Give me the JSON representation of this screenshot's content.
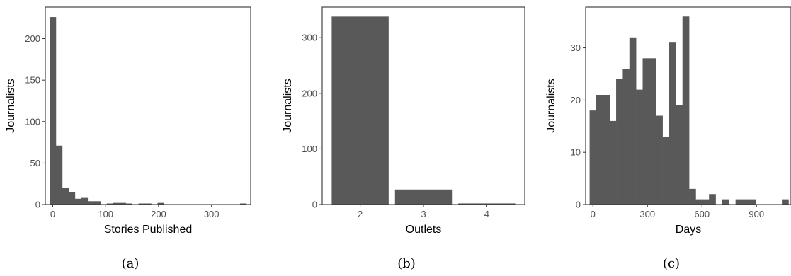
{
  "chart_data": [
    {
      "type": "bar",
      "caption": "(a)",
      "xlabel": "Stories Published",
      "ylabel": "Journalists",
      "xlim": [
        -14,
        374
      ],
      "ylim": [
        0,
        238
      ],
      "xticks": [
        0,
        100,
        200,
        300
      ],
      "yticks": [
        0,
        50,
        100,
        150,
        200
      ],
      "bin_width": 12,
      "bins": [
        {
          "x": 0,
          "y": 226
        },
        {
          "x": 12,
          "y": 71
        },
        {
          "x": 24,
          "y": 20
        },
        {
          "x": 36,
          "y": 15
        },
        {
          "x": 48,
          "y": 7
        },
        {
          "x": 60,
          "y": 8
        },
        {
          "x": 72,
          "y": 4
        },
        {
          "x": 84,
          "y": 4
        },
        {
          "x": 108,
          "y": 1
        },
        {
          "x": 120,
          "y": 2
        },
        {
          "x": 132,
          "y": 2
        },
        {
          "x": 144,
          "y": 1
        },
        {
          "x": 168,
          "y": 1
        },
        {
          "x": 180,
          "y": 1
        },
        {
          "x": 204,
          "y": 2
        },
        {
          "x": 360,
          "y": 1
        }
      ],
      "grid": false
    },
    {
      "type": "bar",
      "caption": "(b)",
      "xlabel": "Outlets",
      "ylabel": "Journalists",
      "categories": [
        "2",
        "3",
        "4"
      ],
      "values": [
        338,
        27,
        2
      ],
      "ylim": [
        0,
        355
      ],
      "yticks": [
        0,
        100,
        200,
        300
      ],
      "grid": false
    },
    {
      "type": "bar",
      "caption": "(c)",
      "xlabel": "Days",
      "ylabel": "Journalists",
      "xlim": [
        -40,
        1090
      ],
      "ylim": [
        0,
        37.8
      ],
      "xticks": [
        0,
        300,
        600,
        900
      ],
      "yticks": [
        0,
        10,
        20,
        30
      ],
      "bin_width": 36.5,
      "bins": [
        {
          "x": 0,
          "y": 18
        },
        {
          "x": 36.5,
          "y": 21
        },
        {
          "x": 73,
          "y": 21
        },
        {
          "x": 109.5,
          "y": 16
        },
        {
          "x": 146,
          "y": 24
        },
        {
          "x": 182.5,
          "y": 26
        },
        {
          "x": 219,
          "y": 32
        },
        {
          "x": 255.5,
          "y": 22
        },
        {
          "x": 292,
          "y": 28
        },
        {
          "x": 328.5,
          "y": 28
        },
        {
          "x": 365,
          "y": 17
        },
        {
          "x": 401.5,
          "y": 13
        },
        {
          "x": 438,
          "y": 31
        },
        {
          "x": 474.5,
          "y": 19
        },
        {
          "x": 511,
          "y": 36
        },
        {
          "x": 547.5,
          "y": 3
        },
        {
          "x": 584,
          "y": 1
        },
        {
          "x": 620.5,
          "y": 1
        },
        {
          "x": 657,
          "y": 2
        },
        {
          "x": 730,
          "y": 1
        },
        {
          "x": 803,
          "y": 1
        },
        {
          "x": 839.5,
          "y": 1
        },
        {
          "x": 876,
          "y": 1
        },
        {
          "x": 1058,
          "y": 1
        }
      ],
      "grid": false
    }
  ]
}
